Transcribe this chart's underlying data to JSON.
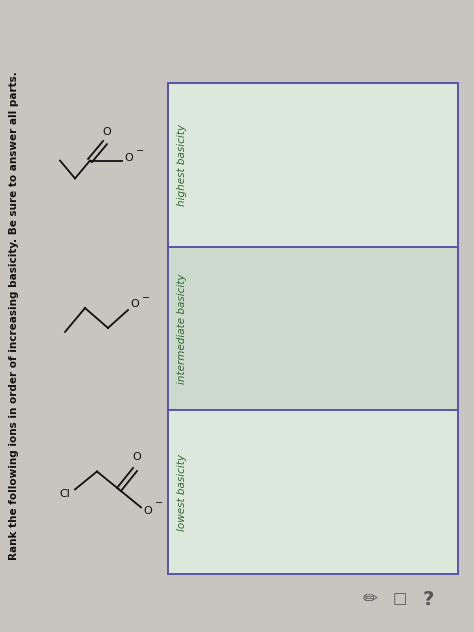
{
  "title": "Rank the following ions in order of increasing basicity. Be sure to answer all parts.",
  "title_fontsize": 7.5,
  "title_color": "#111111",
  "bg_color": "#c8c4c0",
  "panel_bg_mid": "#ccd9cc",
  "panel_bg_light": "#dde8dd",
  "box_border_color": "#5555aa",
  "box_labels": [
    "lowest basicity",
    "intermediate basicity",
    "highest basicity"
  ],
  "label_color": "#2d6a2d",
  "label_fontsize": 7.5,
  "struct_color": "#111111",
  "icons_color": "#555555"
}
